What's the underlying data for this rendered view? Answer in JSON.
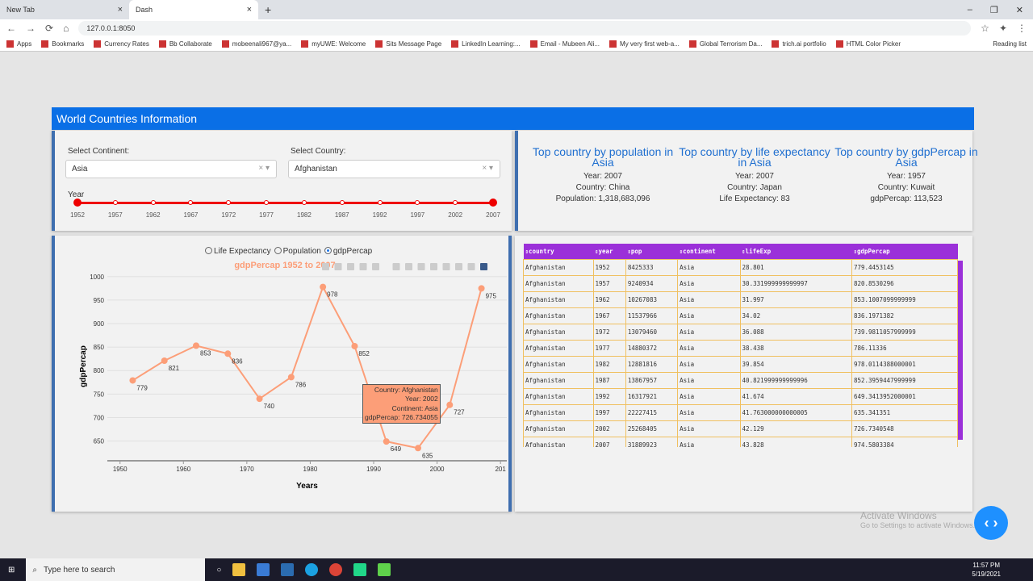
{
  "browser": {
    "tabs": [
      {
        "label": "New Tab"
      },
      {
        "label": "Dash"
      }
    ],
    "url": "127.0.0.1:8050",
    "bookmarks": [
      "Apps",
      "Bookmarks",
      "Currency Rates",
      "Bb Collaborate",
      "mobeenali967@ya...",
      "myUWE: Welcome",
      "Sits Message Page",
      "LinkedIn Learning:...",
      "Email - Mubeen Ali...",
      "My very first web-a...",
      "Global Terrorism Da...",
      "trich.ai portfolio",
      "HTML Color Picker"
    ],
    "reading_list": "Reading list"
  },
  "header": {
    "title": "World Countries Information"
  },
  "filters": {
    "continent_label": "Select Continent:",
    "continent": "Asia",
    "country_label": "Select Country:",
    "country": "Afghanistan",
    "year_label": "Year",
    "year_marks": [
      "1952",
      "1957",
      "1962",
      "1967",
      "1972",
      "1977",
      "1982",
      "1987",
      "1992",
      "1997",
      "2002",
      "2007"
    ],
    "selected_year": "2007"
  },
  "top": [
    {
      "title": "Top country by population in Asia",
      "lines": [
        "Year: 2007",
        "Country: China",
        "Population: 1,318,683,096"
      ]
    },
    {
      "title": "Top country by life expectancy in Asia",
      "lines": [
        "Year: 2007",
        "Country: Japan",
        "Life Expectancy: 83"
      ]
    },
    {
      "title": "Top country by gdpPercap in Asia",
      "lines": [
        "Year: 1957",
        "Country: Kuwait",
        "gdpPercap: 113,523"
      ]
    }
  ],
  "radios": {
    "options": [
      "Life Expectancy",
      "Population",
      "gdpPercap"
    ],
    "selected": "gdpPercap"
  },
  "chart_data": {
    "type": "line",
    "title": "gdpPercap 1952 to 2007",
    "xlabel": "Years",
    "ylabel": "gdpPercap",
    "x": [
      1952,
      1957,
      1962,
      1967,
      1972,
      1977,
      1982,
      1987,
      1992,
      1997,
      2002,
      2007
    ],
    "y": [
      779,
      821,
      853,
      836,
      740,
      786,
      978,
      852,
      649,
      635,
      727,
      975
    ],
    "xticks": [
      "1950",
      "1960",
      "1970",
      "1980",
      "1990",
      "2000",
      "201"
    ],
    "yticks": [
      "650",
      "700",
      "750",
      "800",
      "850",
      "900",
      "950",
      "1000"
    ],
    "xlim": [
      1948,
      2011
    ],
    "ylim": [
      608,
      1010
    ],
    "color": "#fc9e78",
    "grid": true,
    "tooltip": {
      "lines": [
        [
          "Country",
          ": Afghanistan"
        ],
        [
          "Year",
          ": 2002"
        ],
        [
          "Continent",
          ": Asia"
        ],
        [
          "gdpPercap",
          ": 726.734055"
        ]
      ]
    }
  },
  "table": {
    "columns": [
      "country",
      "year",
      "pop",
      "continent",
      "lifeExp",
      "gdpPercap"
    ],
    "rows": [
      [
        "Afghanistan",
        "1952",
        "8425333",
        "Asia",
        "28.801",
        "779.4453145"
      ],
      [
        "Afghanistan",
        "1957",
        "9240934",
        "Asia",
        "30.331999999999997",
        "820.8530296"
      ],
      [
        "Afghanistan",
        "1962",
        "10267083",
        "Asia",
        "31.997",
        "853.1007099999999"
      ],
      [
        "Afghanistan",
        "1967",
        "11537966",
        "Asia",
        "34.02",
        "836.1971382"
      ],
      [
        "Afghanistan",
        "1972",
        "13079460",
        "Asia",
        "36.088",
        "739.9811057999999"
      ],
      [
        "Afghanistan",
        "1977",
        "14880372",
        "Asia",
        "38.438",
        "786.11336"
      ],
      [
        "Afghanistan",
        "1982",
        "12881816",
        "Asia",
        "39.854",
        "978.0114388000001"
      ],
      [
        "Afghanistan",
        "1987",
        "13867957",
        "Asia",
        "40.821999999999996",
        "852.3959447999999"
      ],
      [
        "Afghanistan",
        "1992",
        "16317921",
        "Asia",
        "41.674",
        "649.3413952000001"
      ],
      [
        "Afghanistan",
        "1997",
        "22227415",
        "Asia",
        "41.763000000000005",
        "635.341351"
      ],
      [
        "Afghanistan",
        "2002",
        "25268405",
        "Asia",
        "42.129",
        "726.7340548"
      ],
      [
        "Afghanistan",
        "2007",
        "31889923",
        "Asia",
        "43.828",
        "974.5803384"
      ]
    ]
  },
  "watermark": {
    "title": "Activate Windows",
    "sub": "Go to Settings to activate Windows."
  },
  "taskbar": {
    "search": "Type here to search",
    "time": "11:57 PM",
    "date": "5/19/2021"
  }
}
